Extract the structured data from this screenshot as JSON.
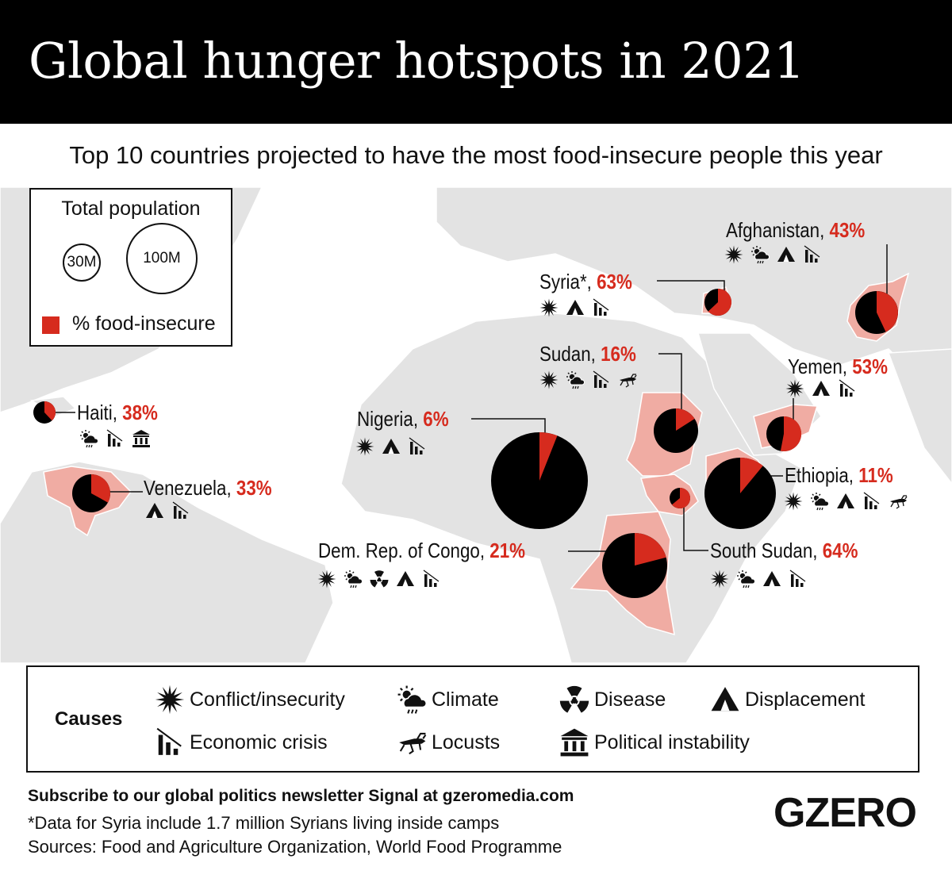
{
  "title": "Global hunger hotspots in 2021",
  "subtitle": "Top 10 countries projected to have the most food-insecure people this year",
  "colors": {
    "food_insecure": "#d62b1e",
    "population": "#000000",
    "highlight_country": "#f0aca3",
    "land": "#e3e3e3"
  },
  "legend": {
    "title": "Total population",
    "small_circle": "30M",
    "large_circle": "100M",
    "swatch_label": "% food-insecure"
  },
  "countries": [
    {
      "name": "Afghanistan,",
      "pct": "43%",
      "value": 43,
      "causes": [
        "conflict",
        "climate",
        "displacement",
        "economic"
      ]
    },
    {
      "name": "Syria*,",
      "pct": "63%",
      "value": 63,
      "causes": [
        "conflict",
        "displacement",
        "economic"
      ]
    },
    {
      "name": "Sudan,",
      "pct": "16%",
      "value": 16,
      "causes": [
        "conflict",
        "climate",
        "economic",
        "locusts"
      ]
    },
    {
      "name": "Yemen,",
      "pct": "53%",
      "value": 53,
      "causes": [
        "conflict",
        "displacement",
        "economic"
      ]
    },
    {
      "name": "Haiti,",
      "pct": "38%",
      "value": 38,
      "causes": [
        "climate",
        "economic",
        "political"
      ]
    },
    {
      "name": "Nigeria,",
      "pct": "6%",
      "value": 6,
      "causes": [
        "conflict",
        "displacement",
        "economic"
      ]
    },
    {
      "name": "Venezuela,",
      "pct": "33%",
      "value": 33,
      "causes": [
        "displacement",
        "economic"
      ]
    },
    {
      "name": "Ethiopia,",
      "pct": "11%",
      "value": 11,
      "causes": [
        "conflict",
        "climate",
        "displacement",
        "economic",
        "locusts"
      ]
    },
    {
      "name": "Dem. Rep. of Congo,",
      "pct": "21%",
      "value": 21,
      "causes": [
        "conflict",
        "climate",
        "disease",
        "displacement",
        "economic"
      ]
    },
    {
      "name": "South Sudan,",
      "pct": "64%",
      "value": 64,
      "causes": [
        "conflict",
        "climate",
        "displacement",
        "economic"
      ]
    }
  ],
  "causes_legend": {
    "title": "Causes",
    "items": [
      {
        "icon": "conflict",
        "label": "Conflict/insecurity"
      },
      {
        "icon": "climate",
        "label": "Climate"
      },
      {
        "icon": "disease",
        "label": "Disease"
      },
      {
        "icon": "displacement",
        "label": "Displacement"
      },
      {
        "icon": "economic",
        "label": "Economic crisis"
      },
      {
        "icon": "locusts",
        "label": "Locusts"
      },
      {
        "icon": "political",
        "label": "Political instability"
      }
    ]
  },
  "footer": {
    "newsletter": "Subscribe to our global politics newsletter Signal at gzeromedia.com",
    "note": "*Data for Syria include 1.7 million Syrians living inside camps",
    "sources": "Sources: Food and Agriculture Organization, World Food Programme"
  },
  "logo": "GZERO"
}
